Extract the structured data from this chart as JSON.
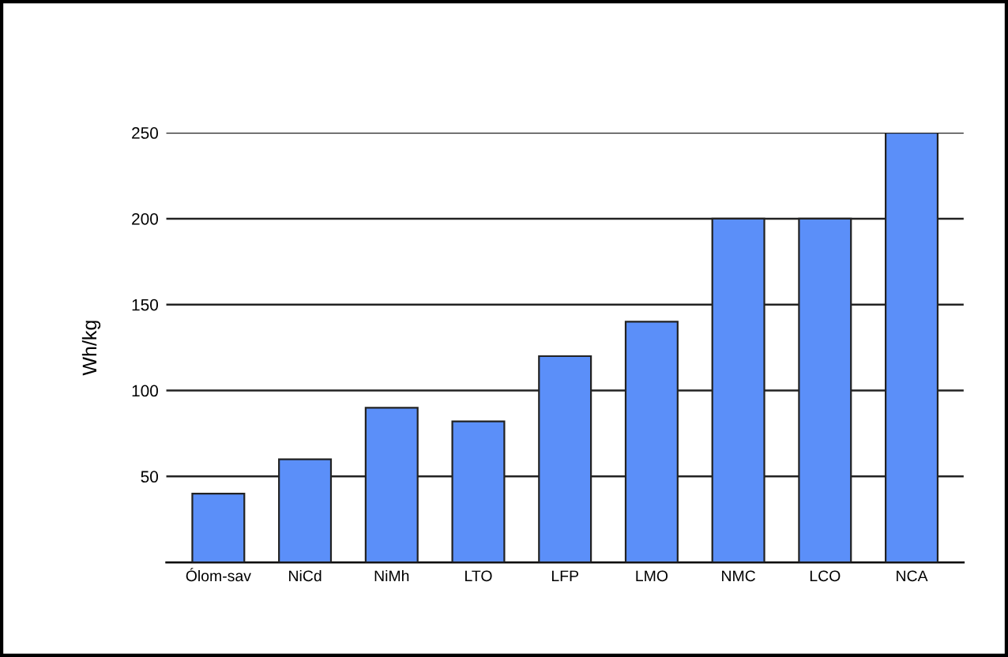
{
  "chart_data": {
    "type": "bar",
    "ylabel": "Wh/kg",
    "categories": [
      "Ólom-sav",
      "NiCd",
      "NiMh",
      "LTO",
      "LFP",
      "LMO",
      "NMC",
      "LCO",
      "NCA"
    ],
    "values": [
      40,
      60,
      90,
      82,
      120,
      140,
      200,
      200,
      250
    ],
    "color": "#5b8ff9",
    "ylim": [
      0,
      250
    ],
    "yticks": [
      50,
      100,
      150,
      200,
      250
    ],
    "grid": "y"
  }
}
